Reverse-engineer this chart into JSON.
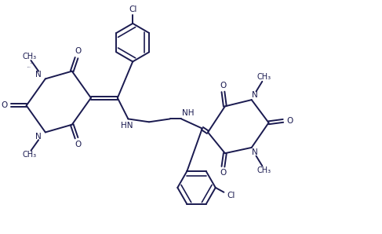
{
  "bg_color": "#ffffff",
  "line_color": "#1a1a50",
  "figsize": [
    4.87,
    2.98
  ],
  "dpi": 100,
  "lw": 1.4,
  "xlim": [
    0,
    10
  ],
  "ylim": [
    0,
    6.1
  ]
}
